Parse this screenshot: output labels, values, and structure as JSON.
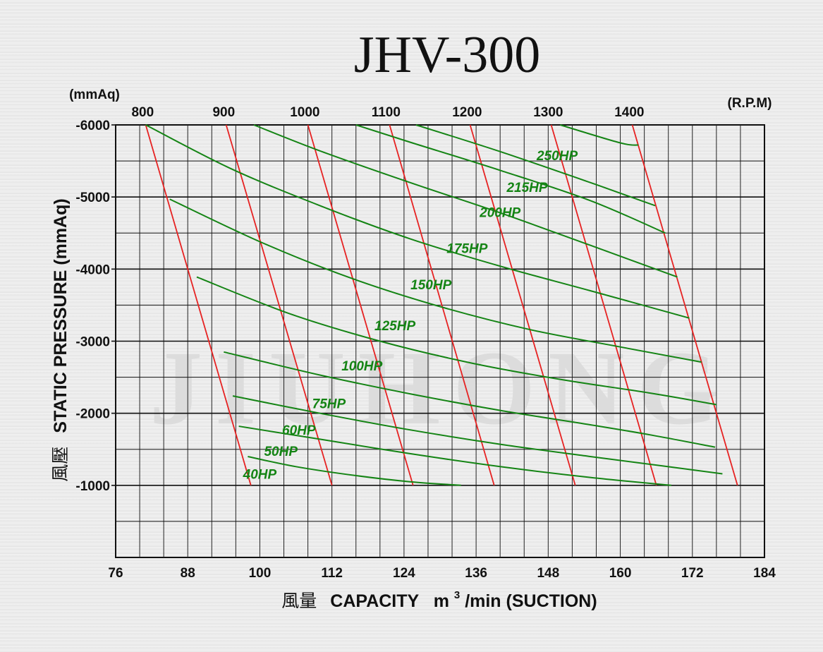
{
  "chart_data": {
    "type": "line",
    "title": "JHV-300",
    "watermark": "JIUHONG",
    "xlim": [
      76,
      184
    ],
    "ylim": [
      0,
      -6000
    ],
    "x_ticks": [
      "76",
      "88",
      "100",
      "112",
      "124",
      "136",
      "148",
      "160",
      "172",
      "184"
    ],
    "y_ticks": [
      "-6000",
      "-5000",
      "-4000",
      "-3000",
      "-2000",
      "-1000"
    ],
    "xlabel_cjk": "風量",
    "xlabel": "CAPACITY",
    "xlabel_unit_pre": "m",
    "xlabel_unit_sup": "3",
    "xlabel_unit_post": "/min (SUCTION)",
    "ylabel_cjk": "風壓",
    "ylabel": "STATIC  PRESSURE  (mmAq)",
    "y_unit_label": "(mmAq)",
    "rpm_unit_label": "(R.P.M)",
    "grid": true,
    "rpm_series": [
      {
        "name": "800",
        "x": [
          81.0,
          98.5
        ],
        "y": [
          -6000,
          -1000
        ]
      },
      {
        "name": "900",
        "x": [
          94.4,
          112.0
        ],
        "y": [
          -6000,
          -1000
        ]
      },
      {
        "name": "1000",
        "x": [
          108.0,
          125.5
        ],
        "y": [
          -6000,
          -1000
        ]
      },
      {
        "name": "1100",
        "x": [
          121.6,
          139.0
        ],
        "y": [
          -6000,
          -1000
        ]
      },
      {
        "name": "1200",
        "x": [
          135.0,
          152.5
        ],
        "y": [
          -6000,
          -1000
        ]
      },
      {
        "name": "1300",
        "x": [
          148.5,
          166.0
        ],
        "y": [
          -6000,
          -1000
        ]
      },
      {
        "name": "1400",
        "x": [
          162.0,
          179.5
        ],
        "y": [
          -6000,
          -1000
        ]
      }
    ],
    "rpm_labels": [
      {
        "text": "800",
        "x": 80.5
      },
      {
        "text": "900",
        "x": 94.0
      },
      {
        "text": "1000",
        "x": 107.5
      },
      {
        "text": "1100",
        "x": 121.0
      },
      {
        "text": "1200",
        "x": 134.5
      },
      {
        "text": "1300",
        "x": 148.0
      },
      {
        "text": "1400",
        "x": 161.5
      }
    ],
    "hp_series": [
      {
        "name": "40HP",
        "x": [
          98.0,
          106.0,
          116.0,
          125.0,
          133.5
        ],
        "y": [
          -1400,
          -1260,
          -1135,
          -1050,
          -1000
        ]
      },
      {
        "name": "50HP",
        "x": [
          96.5,
          110.0,
          125.0,
          140.0,
          155.0,
          168.5
        ],
        "y": [
          -1820,
          -1640,
          -1440,
          -1260,
          -1110,
          -1000
        ]
      },
      {
        "name": "60HP",
        "x": [
          95.5,
          110.0,
          125.0,
          140.0,
          155.0,
          167.0,
          177.0
        ],
        "y": [
          -2240,
          -2000,
          -1770,
          -1570,
          -1400,
          -1270,
          -1160
        ]
      },
      {
        "name": "75HP",
        "x": [
          94.0,
          110.0,
          125.0,
          140.0,
          155.0,
          165.0,
          175.8
        ],
        "y": [
          -2850,
          -2530,
          -2270,
          -2040,
          -1840,
          -1700,
          -1530
        ]
      },
      {
        "name": "100HP",
        "x": [
          89.5,
          105.0,
          120.0,
          135.0,
          150.0,
          165.0,
          176.0
        ],
        "y": [
          -3890,
          -3380,
          -3000,
          -2700,
          -2470,
          -2280,
          -2120
        ]
      },
      {
        "name": "125HP",
        "x": [
          85.0,
          100.0,
          115.0,
          130.0,
          145.0,
          160.0,
          173.5
        ],
        "y": [
          -4970,
          -4380,
          -3880,
          -3480,
          -3160,
          -2920,
          -2710
        ]
      },
      {
        "name": "150HP",
        "x": [
          81.0,
          95.0,
          110.0,
          125.0,
          140.0,
          155.0,
          171.5
        ],
        "y": [
          -6000,
          -5400,
          -4880,
          -4420,
          -4040,
          -3700,
          -3320
        ]
      },
      {
        "name": "175HP",
        "x": [
          99.0,
          110.0,
          125.0,
          140.0,
          155.0,
          169.5
        ],
        "y": [
          -6000,
          -5640,
          -5200,
          -4780,
          -4330,
          -3890
        ]
      },
      {
        "name": "200HP",
        "x": [
          116.0,
          125.0,
          140.0,
          155.0,
          167.5
        ],
        "y": [
          -6000,
          -5760,
          -5370,
          -4950,
          -4500
        ]
      },
      {
        "name": "215HP",
        "x": [
          126.0,
          140.0,
          155.0,
          165.8
        ],
        "y": [
          -6000,
          -5630,
          -5200,
          -4880
        ]
      },
      {
        "name": "250HP",
        "x": [
          150.0,
          160.0,
          163.0
        ],
        "y": [
          -6000,
          -5750,
          -5720
        ]
      }
    ],
    "hp_labels": [
      {
        "text": "40HP",
        "x": 100.0,
        "y": -1160
      },
      {
        "text": "50HP",
        "x": 103.5,
        "y": -1480
      },
      {
        "text": "60HP",
        "x": 106.5,
        "y": -1770
      },
      {
        "text": "75HP",
        "x": 111.5,
        "y": -2140
      },
      {
        "text": "100HP",
        "x": 117.0,
        "y": -2660
      },
      {
        "text": "125HP",
        "x": 122.5,
        "y": -3220
      },
      {
        "text": "150HP",
        "x": 128.5,
        "y": -3790
      },
      {
        "text": "175HP",
        "x": 134.5,
        "y": -4290
      },
      {
        "text": "200HP",
        "x": 140.0,
        "y": -4790
      },
      {
        "text": "215HP",
        "x": 144.5,
        "y": -5140
      },
      {
        "text": "250HP",
        "x": 149.5,
        "y": -5580
      }
    ],
    "colors": {
      "rpm": "#e62222",
      "hp": "#148414",
      "grid": "#111111",
      "hp_text": "#148414"
    }
  }
}
